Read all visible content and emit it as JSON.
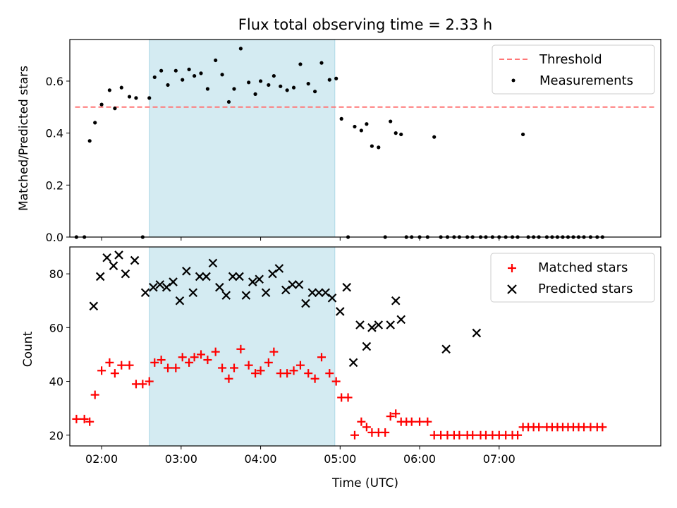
{
  "chart_data": [
    {
      "type": "scatter",
      "title": "Flux total observing time = 2.33 h",
      "xlabel": "",
      "ylabel": "Matched/Predicted stars",
      "xlim": [
        96,
        542
      ],
      "ylim": [
        0,
        0.76
      ],
      "yticks": [
        0.0,
        0.2,
        0.4,
        0.6
      ],
      "ytick_labels": [
        "0.0",
        "0.2",
        "0.4",
        "0.6"
      ],
      "xticks": [
        120,
        180,
        240,
        300,
        360,
        420
      ],
      "xtick_labels": [
        "",
        "",
        "",
        "",
        "",
        ""
      ],
      "highlight_span": [
        156,
        296
      ],
      "legend": {
        "position": "top-right",
        "entries": [
          "Threshold",
          "Measurements"
        ]
      },
      "threshold": {
        "name": "Threshold",
        "value": 0.5,
        "x_range": [
          100,
          537
        ],
        "color": "#ff7777"
      },
      "measurements": {
        "name": "Measurements",
        "color": "#000000",
        "x": [
          101,
          107,
          111,
          115,
          120,
          126,
          130,
          135,
          141,
          146,
          151,
          156,
          160,
          165,
          170,
          176,
          181,
          186,
          190,
          195,
          200,
          206,
          211,
          216,
          220,
          225,
          231,
          236,
          240,
          246,
          250,
          255,
          260,
          265,
          270,
          276,
          281,
          286,
          292,
          297,
          301,
          306,
          311,
          316,
          320,
          324,
          329,
          334,
          338,
          342,
          346,
          350,
          354,
          360,
          366,
          371,
          376,
          381,
          386,
          390,
          396,
          400,
          406,
          410,
          415,
          420,
          425,
          430,
          434,
          438,
          442,
          446,
          450,
          456,
          460,
          464,
          468,
          472,
          476,
          480,
          484,
          489,
          494,
          498
        ],
        "y": [
          0,
          0,
          0.37,
          0.44,
          0.51,
          0.565,
          0.495,
          0.575,
          0.54,
          0.535,
          0,
          0.535,
          0.615,
          0.64,
          0.585,
          0.64,
          0.605,
          0.645,
          0.62,
          0.63,
          0.57,
          0.68,
          0.625,
          0.52,
          0.57,
          0.725,
          0.595,
          0.55,
          0.6,
          0.585,
          0.62,
          0.58,
          0.565,
          0.575,
          0.665,
          0.59,
          0.56,
          0.67,
          0.605,
          0.61,
          0.455,
          0,
          0.425,
          0.41,
          0.435,
          0.35,
          0.345,
          0,
          0.445,
          0.4,
          0.395,
          0,
          0,
          0,
          0,
          0.385,
          0,
          0,
          0,
          0,
          0,
          0,
          0,
          0,
          0,
          0,
          0,
          0,
          0,
          0.395,
          0,
          0,
          0,
          0,
          0,
          0,
          0,
          0,
          0,
          0,
          0,
          0,
          0,
          0
        ]
      }
    },
    {
      "type": "scatter",
      "title": "",
      "xlabel": "Time (UTC)",
      "ylabel": "Count",
      "xlim": [
        96,
        542
      ],
      "ylim": [
        16,
        90
      ],
      "yticks": [
        20,
        40,
        60,
        80
      ],
      "ytick_labels": [
        "20",
        "40",
        "60",
        "80"
      ],
      "xticks": [
        120,
        180,
        240,
        300,
        360,
        420
      ],
      "xtick_labels": [
        "02:00",
        "03:00",
        "04:00",
        "05:00",
        "06:00",
        "07:00"
      ],
      "highlight_span": [
        156,
        296
      ],
      "legend": {
        "position": "top-right",
        "entries": [
          "Matched stars",
          "Predicted stars"
        ]
      },
      "series": [
        {
          "name": "Matched stars",
          "marker": "plus",
          "color": "#ff0000",
          "x": [
            101,
            107,
            111,
            115,
            120,
            126,
            130,
            135,
            141,
            146,
            151,
            156,
            160,
            165,
            170,
            176,
            181,
            186,
            190,
            195,
            200,
            206,
            211,
            216,
            220,
            225,
            231,
            236,
            240,
            246,
            250,
            255,
            260,
            265,
            270,
            276,
            281,
            286,
            292,
            297,
            301,
            306,
            311,
            316,
            320,
            324,
            329,
            334,
            338,
            342,
            346,
            350,
            354,
            360,
            366,
            371,
            376,
            381,
            386,
            390,
            396,
            400,
            406,
            410,
            415,
            420,
            425,
            430,
            434,
            438,
            442,
            446,
            450,
            456,
            460,
            464,
            468,
            472,
            476,
            480,
            484,
            489,
            494,
            498
          ],
          "y": [
            26,
            26,
            25,
            35,
            44,
            47,
            43,
            46,
            46,
            39,
            39,
            40,
            47,
            48,
            45,
            45,
            49,
            47,
            49,
            50,
            48,
            51,
            45,
            41,
            45,
            52,
            46,
            43,
            44,
            47,
            51,
            43,
            43,
            44,
            46,
            43,
            41,
            49,
            43,
            40,
            34,
            34,
            20,
            25,
            23,
            21,
            21,
            21,
            27,
            28,
            25,
            25,
            25,
            25,
            25,
            20,
            20,
            20,
            20,
            20,
            20,
            20,
            20,
            20,
            20,
            20,
            20,
            20,
            20,
            23,
            23,
            23,
            23,
            23,
            23,
            23,
            23,
            23,
            23,
            23,
            23,
            23,
            23,
            23
          ]
        },
        {
          "name": "Predicted stars",
          "marker": "x",
          "color": "#000000",
          "x": [
            114,
            119,
            124,
            129,
            133,
            138,
            145,
            153,
            159,
            164,
            169,
            174,
            179,
            184,
            189,
            194,
            199,
            204,
            209,
            214,
            219,
            224,
            229,
            234,
            239,
            244,
            249,
            254,
            259,
            264,
            269,
            274,
            279,
            284,
            289,
            294,
            300,
            305,
            310,
            315,
            320,
            324,
            329,
            338,
            342,
            346,
            380,
            403
          ],
          "y": [
            68,
            79,
            86,
            83,
            87,
            80,
            85,
            73,
            75,
            76,
            75,
            77,
            70,
            81,
            73,
            79,
            79,
            84,
            75,
            72,
            79,
            79,
            72,
            77,
            78,
            73,
            80,
            82,
            74,
            76,
            76,
            69,
            73,
            73,
            73,
            71,
            66,
            75,
            47,
            61,
            53,
            60,
            61,
            61,
            70,
            63,
            52,
            58
          ]
        }
      ]
    }
  ]
}
